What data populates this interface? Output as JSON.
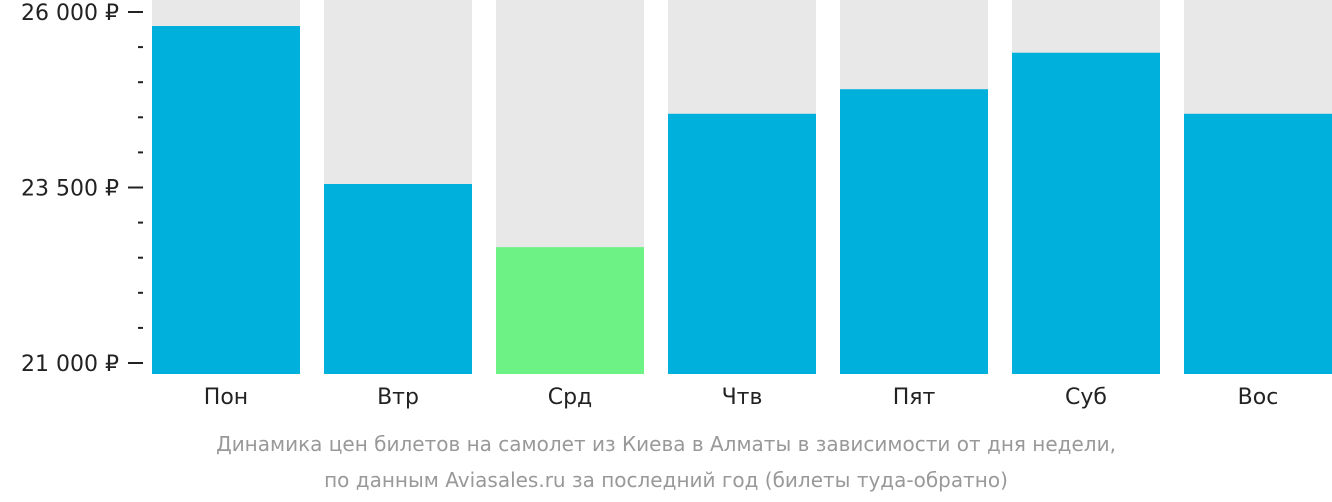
{
  "chart_data": {
    "type": "bar",
    "categories": [
      "Пон",
      "Втр",
      "Срд",
      "Чтв",
      "Пят",
      "Суб",
      "Вос"
    ],
    "values": [
      25800,
      23550,
      22650,
      24550,
      24900,
      25420,
      24550
    ],
    "ylim": [
      21000,
      26000
    ],
    "yticks": [
      {
        "value": 26000,
        "label": "26 000 ₽"
      },
      {
        "value": 23500,
        "label": "23 500 ₽"
      },
      {
        "value": 21000,
        "label": "21 000 ₽"
      }
    ],
    "highlight_index": 2,
    "colors": {
      "bar": "#00b0dc",
      "highlight": "#6cf285",
      "background_bar": "#e8e8e9",
      "axis": "#222222"
    },
    "grid": false,
    "legend": "none"
  },
  "caption": {
    "line1": "Динамика цен билетов на самолет из Киева в Алматы в зависимости от дня недели,",
    "line2": "по данным Aviasales.ru за последний год (билеты туда-обратно)"
  }
}
